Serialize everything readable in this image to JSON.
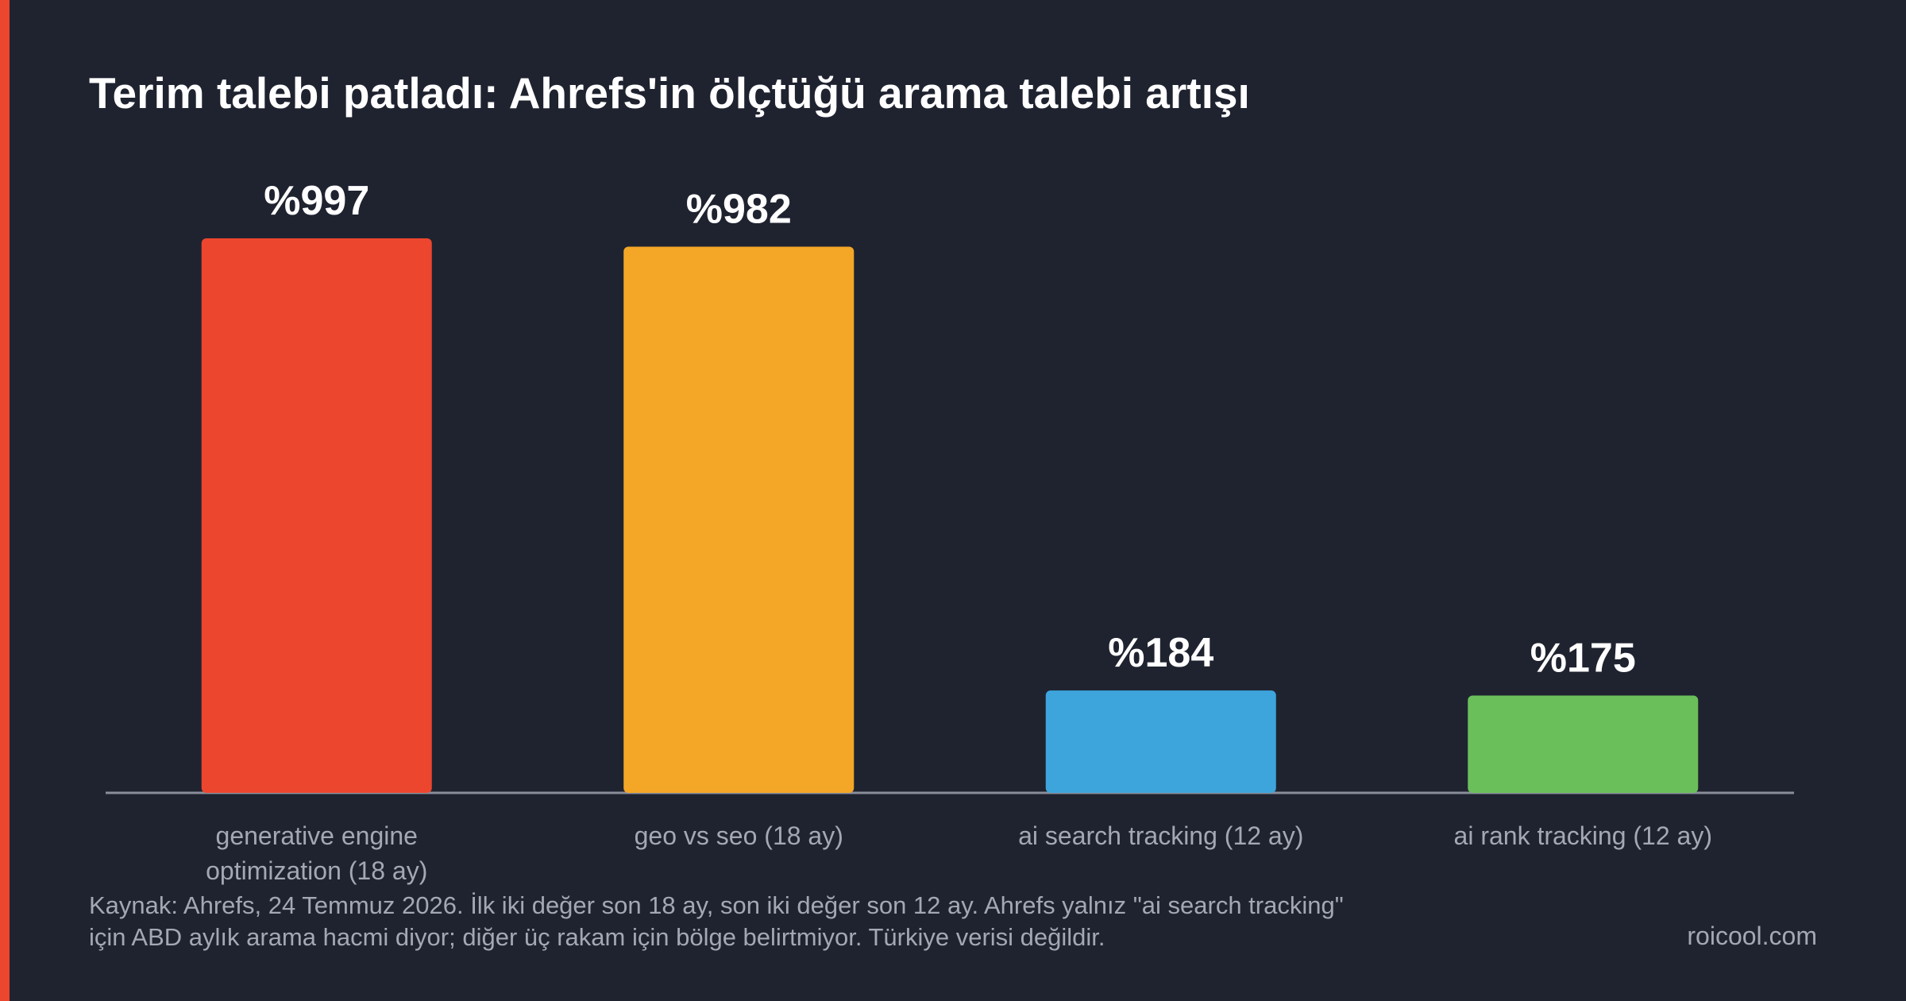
{
  "chart_data": {
    "type": "bar",
    "title": "Terim talebi patladı: Ahrefs'in ölçtüğü arama talebi artışı",
    "categories": [
      "generative engine optimization (18 ay)",
      "geo vs seo (18 ay)",
      "ai search tracking (12 ay)",
      "ai rank tracking (12 ay)"
    ],
    "values": [
      997,
      982,
      184,
      175
    ],
    "value_labels": [
      "%997",
      "%982",
      "%184",
      "%175"
    ],
    "colors": [
      "#ec462e",
      "#f4a626",
      "#3da5dc",
      "#6abf5a"
    ],
    "note": [
      "Kaynak: Ahrefs, 24 Temmuz 2026. İlk iki değer son 18 ay, son iki değer son 12 ay. Ahrefs yalnız \"ai search tracking\"",
      "için ABD aylık arama hacmi diyor; diğer üç rakam için bölge belirtmiyor. Türkiye verisi değildir."
    ],
    "watermark": "roicool.com"
  }
}
